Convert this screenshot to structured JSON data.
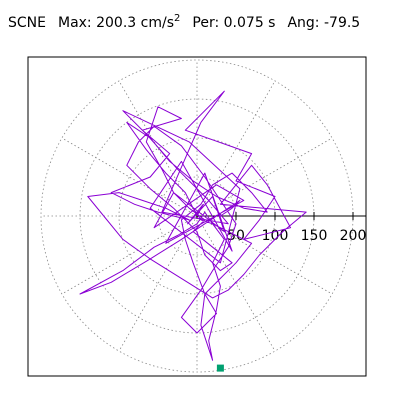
{
  "chart_data": {
    "type": "line",
    "title": {
      "station": "SCNE",
      "max_label": "Max:",
      "max_value": "200.3",
      "max_unit": "cm/s",
      "max_unit_exp": "2",
      "period_label": "Per:",
      "period_value": "0.075 s",
      "angle_label": "Ang:",
      "angle_value": "-79.5"
    },
    "coordinate_system": "polar",
    "radial_ticks": [
      "50",
      "100",
      "150",
      "200"
    ],
    "radial_tick_values": [
      50,
      100,
      150,
      200
    ],
    "radial_range": [
      0,
      200
    ],
    "grid": true,
    "grid_style": "dotted circles every 50 units, spokes every 30 degrees",
    "series": [
      {
        "color": "#8a00d4",
        "x": [
          0,
          8,
          -12,
          20,
          35,
          -30,
          -55,
          25,
          60,
          -40,
          10,
          45,
          -20,
          -60,
          30,
          55,
          -10,
          -95,
          -65,
          -25,
          15,
          40,
          -45,
          5,
          35,
          -15,
          70,
          50,
          100,
          80,
          60,
          120,
          90,
          70,
          30,
          140,
          110,
          80,
          60,
          40,
          20,
          -20,
          -60,
          -95,
          -140,
          -100,
          -70,
          -40,
          -10,
          -50,
          -80,
          -110,
          -60,
          -35,
          -70,
          -20,
          -50,
          -65,
          -45,
          -30,
          -10,
          10,
          -5,
          20,
          45,
          30,
          10,
          0,
          -30,
          -60,
          -90,
          -75,
          -55,
          -20,
          10,
          30,
          50,
          40,
          20,
          5,
          -20,
          0,
          25,
          10,
          30,
          50,
          70,
          40,
          20,
          5,
          -5,
          -15,
          -40,
          -65,
          -90,
          -60,
          -35,
          -5,
          25,
          60,
          90,
          70,
          45,
          20,
          5,
          -20,
          -15,
          -5,
          10,
          5,
          20,
          15,
          25,
          30,
          20,
          35,
          20,
          10,
          0,
          -25,
          -55,
          -95,
          -150,
          -110,
          -60,
          -20,
          10,
          40,
          55,
          45,
          30
        ],
        "y": [
          0,
          15,
          -10,
          25,
          -20,
          30,
          -15,
          40,
          20,
          -35,
          55,
          -45,
          70,
          10,
          -60,
          35,
          95,
          135,
          105,
          60,
          20,
          -10,
          5,
          120,
          160,
          110,
          80,
          45,
          25,
          -5,
          -30,
          -15,
          40,
          65,
          15,
          5,
          -20,
          -50,
          -75,
          -95,
          -105,
          -80,
          -55,
          -30,
          25,
          30,
          20,
          10,
          -5,
          5,
          15,
          30,
          50,
          80,
          110,
          125,
          140,
          95,
          60,
          30,
          10,
          -5,
          -20,
          -40,
          -60,
          -70,
          -50,
          -20,
          10,
          35,
          65,
          95,
          115,
          90,
          50,
          20,
          -10,
          -40,
          -70,
          -95,
          -130,
          -150,
          -125,
          -100,
          -80,
          -60,
          -35,
          -20,
          -10,
          -5,
          10,
          30,
          55,
          85,
          120,
          100,
          70,
          45,
          25,
          10,
          5,
          30,
          55,
          40,
          15,
          -5,
          -30,
          -60,
          -100,
          -140,
          -185,
          -160,
          -120,
          -90,
          -60,
          -30,
          -10,
          5,
          -10,
          -25,
          -40,
          -70,
          -100,
          -85,
          -55,
          -30,
          -10,
          10,
          20,
          10,
          0
        ]
      }
    ],
    "markers": [
      {
        "label": "",
        "x": 30,
        "y": -195,
        "color": "#00a070",
        "shape": "square"
      }
    ]
  }
}
